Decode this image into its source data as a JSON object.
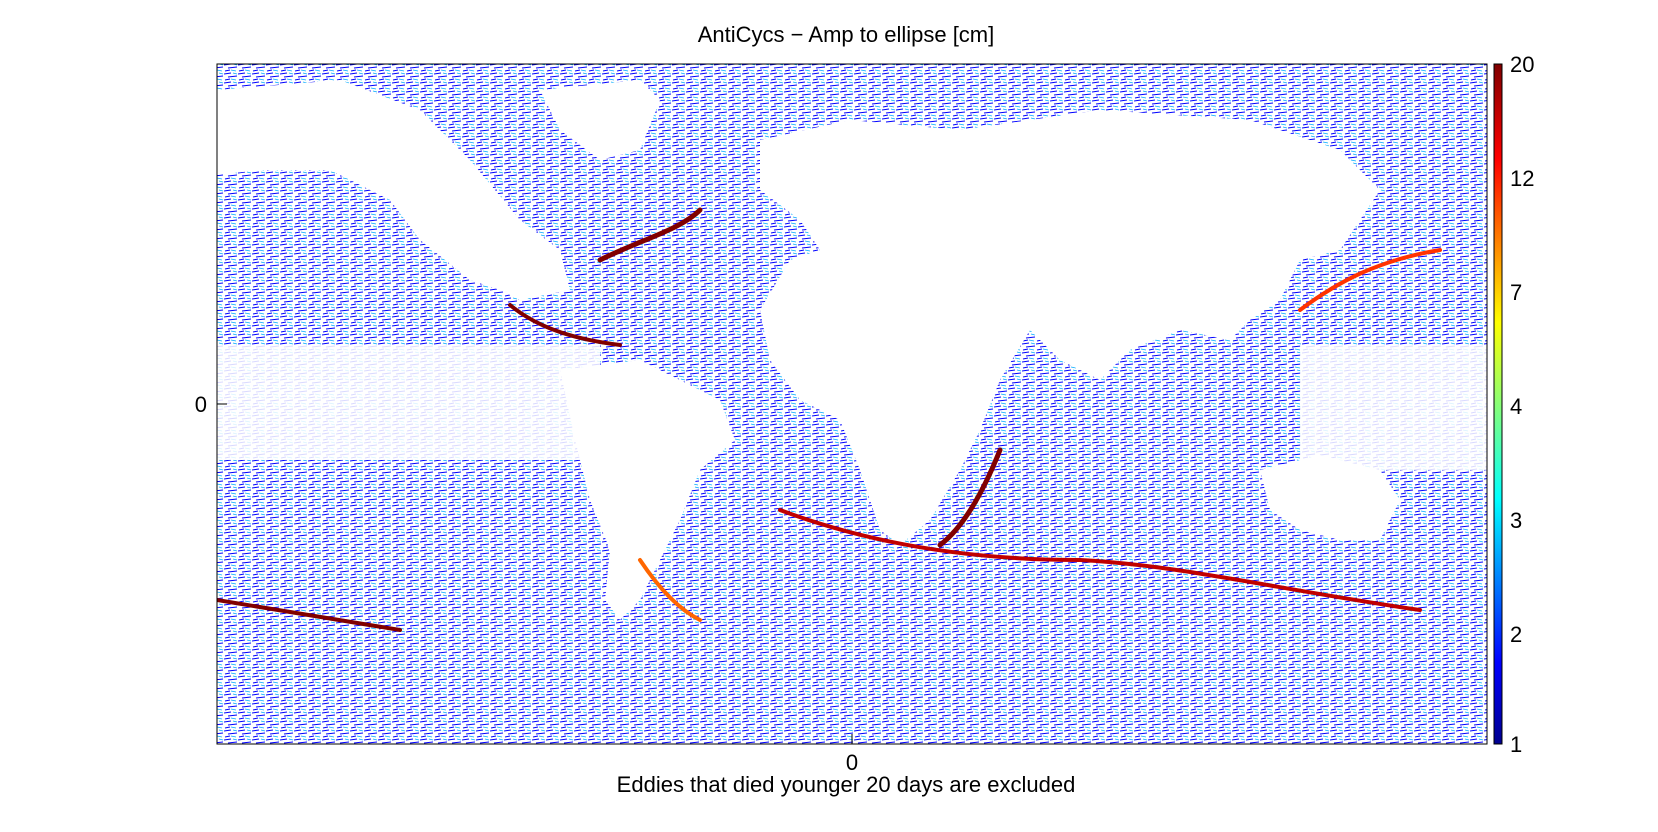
{
  "chart_data": {
    "type": "heatmap",
    "title": "AntiCycs − Amp to ellipse [cm]",
    "xlabel": "Eddies that died younger 20 days are excluded",
    "ylabel": "",
    "x_ticks": [
      "0"
    ],
    "y_ticks": [
      "0"
    ],
    "grid": false,
    "colorbar": {
      "label": "",
      "scale": "nonlinear",
      "range": [
        1,
        20
      ],
      "tick_labels": [
        "20",
        "12",
        "7",
        "4",
        "3",
        "2",
        "1"
      ],
      "colormap": "jet",
      "stops": [
        "#00008f",
        "#0000ff",
        "#00ffff",
        "#ffff00",
        "#ff0000",
        "#800000"
      ]
    },
    "description_colors": {
      "land": "#ffffff",
      "background": "#ffffff"
    }
  }
}
